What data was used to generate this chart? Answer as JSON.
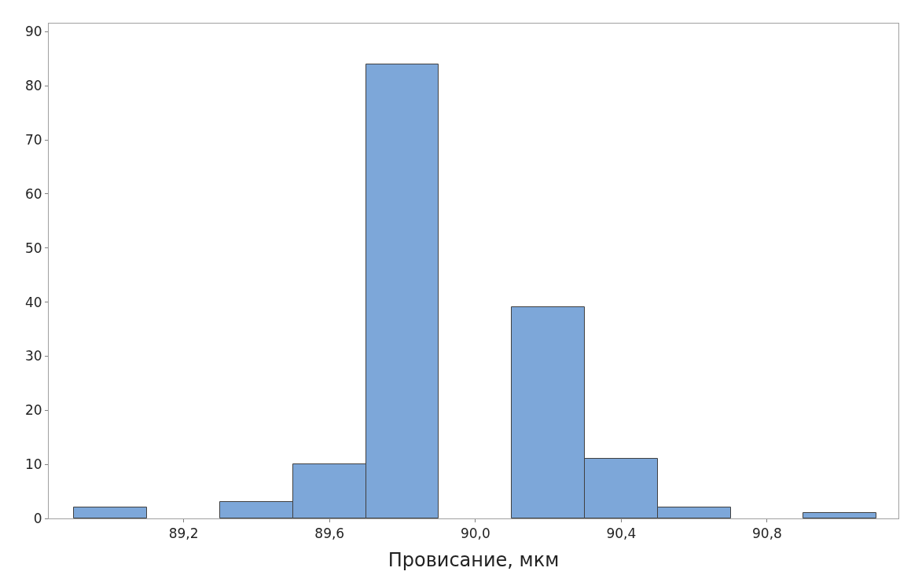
{
  "chart_data": {
    "type": "histogram",
    "xlabel": "Провисание, мкм",
    "bins": [
      88.9,
      89.1,
      89.3,
      89.5,
      89.7,
      89.9,
      90.1,
      90.3,
      90.5,
      90.7,
      90.9,
      91.1
    ],
    "values": [
      2,
      0,
      3,
      10,
      84,
      0,
      39,
      11,
      2,
      0,
      1
    ],
    "color": "#7da7d9",
    "xlim": [
      88.83,
      91.16
    ],
    "xticks": [
      {
        "value": 89.2,
        "label": "89,2"
      },
      {
        "value": 89.6,
        "label": "89,6"
      },
      {
        "value": 90.0,
        "label": "90,0"
      },
      {
        "value": 90.4,
        "label": "90,4"
      },
      {
        "value": 90.8,
        "label": "90,8"
      }
    ],
    "ylim": [
      0,
      91.5
    ],
    "yticks": [
      0,
      10,
      20,
      30,
      40,
      50,
      60,
      70,
      80,
      90
    ],
    "tick_labels": "xy"
  }
}
